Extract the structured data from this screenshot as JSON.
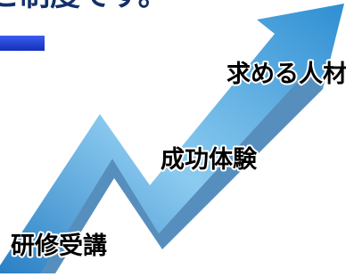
{
  "header": {
    "title": "と制度です。"
  },
  "steps": [
    {
      "label": "研修受講"
    },
    {
      "label": "成功体験"
    },
    {
      "label": "求める人材"
    }
  ]
}
